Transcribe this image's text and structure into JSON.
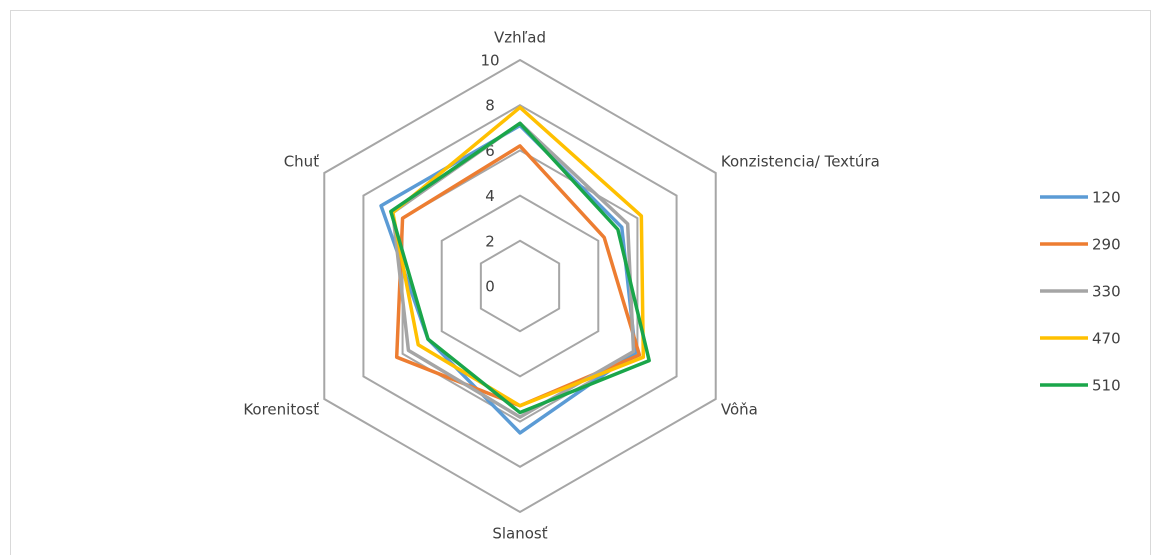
{
  "chart_data": {
    "type": "radar",
    "categories": [
      "Vzhľad",
      "Konzistencia/ Textúra",
      "Vôňa",
      "Slanosť",
      "Korenitosť",
      "Chuť"
    ],
    "series": [
      {
        "name": "120",
        "color": "#5b9bd5",
        "values": [
          7.1,
          5.2,
          5.9,
          6.5,
          4.7,
          7.1
        ]
      },
      {
        "name": "290",
        "color": "#ed7d31",
        "values": [
          6.2,
          4.3,
          6.1,
          5.3,
          6.3,
          6.0
        ]
      },
      {
        "name": "330",
        "color": "#a5a5a5",
        "values": [
          7.2,
          5.5,
          5.8,
          5.8,
          5.7,
          6.5
        ]
      },
      {
        "name": "470",
        "color": "#ffc000",
        "values": [
          7.9,
          6.2,
          6.3,
          5.3,
          5.2,
          6.5
        ]
      },
      {
        "name": "510",
        "color": "#1aa64a",
        "values": [
          7.2,
          5.0,
          6.6,
          5.6,
          4.7,
          6.6
        ]
      }
    ],
    "rlim": [
      0,
      10
    ],
    "rticks": [
      0,
      2,
      4,
      6,
      8,
      10
    ],
    "grid": true,
    "legend": "right"
  }
}
